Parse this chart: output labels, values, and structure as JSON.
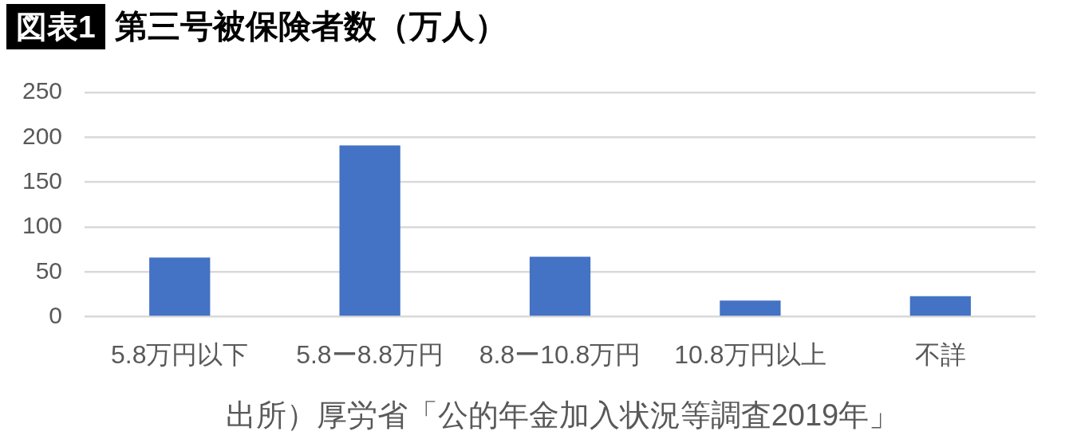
{
  "chart_data": {
    "type": "bar",
    "title": "図表1 第三号被保険者数（万人）",
    "categories": [
      "5.8万円以下",
      "5.8ー8.8万円",
      "8.8ー10.8万円",
      "10.8万円以上",
      "不詳"
    ],
    "values": [
      66,
      191,
      67,
      18,
      23
    ],
    "color": "#4472c4",
    "ylim": [
      0,
      250
    ],
    "yticks": [
      0,
      50,
      100,
      150,
      200,
      250
    ],
    "grid": "y",
    "annotations": [
      "出所）厚労省「公的年金加入状況等調査2019年」"
    ]
  }
}
